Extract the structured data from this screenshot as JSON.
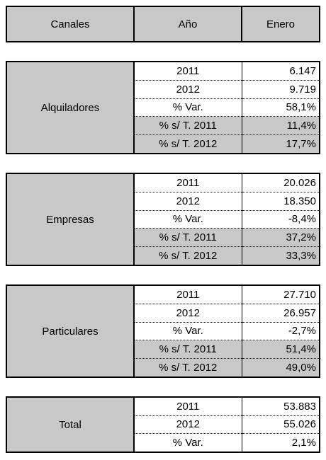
{
  "header": {
    "col1": "Canales",
    "col2": "Año",
    "col3": "Enero"
  },
  "sections": [
    {
      "name": "Alquiladores",
      "rows": [
        {
          "label": "2011",
          "value": "6.147"
        },
        {
          "label": "2012",
          "value": "9.719"
        },
        {
          "label": "% Var.",
          "value": "58,1%"
        },
        {
          "label": "% s/ T. 2011",
          "value": "11,4%"
        },
        {
          "label": "% s/ T. 2012",
          "value": "17,7%"
        }
      ]
    },
    {
      "name": "Empresas",
      "rows": [
        {
          "label": "2011",
          "value": "20.026"
        },
        {
          "label": "2012",
          "value": "18.350"
        },
        {
          "label": "% Var.",
          "value": "-8,4%"
        },
        {
          "label": "% s/ T. 2011",
          "value": "37,2%"
        },
        {
          "label": "% s/ T. 2012",
          "value": "33,3%"
        }
      ]
    },
    {
      "name": "Particulares",
      "rows": [
        {
          "label": "2011",
          "value": "27.710"
        },
        {
          "label": "2012",
          "value": "26.957"
        },
        {
          "label": "% Var.",
          "value": "-2,7%"
        },
        {
          "label": "% s/ T. 2011",
          "value": "51,4%"
        },
        {
          "label": "% s/ T. 2012",
          "value": "49,0%"
        }
      ]
    },
    {
      "name": "Total",
      "rows": [
        {
          "label": "2011",
          "value": "53.883"
        },
        {
          "label": "2012",
          "value": "55.026"
        },
        {
          "label": "% Var.",
          "value": "2,1%"
        }
      ]
    }
  ],
  "colors": {
    "header_fill": "#c8c8c8",
    "border": "#000000"
  }
}
